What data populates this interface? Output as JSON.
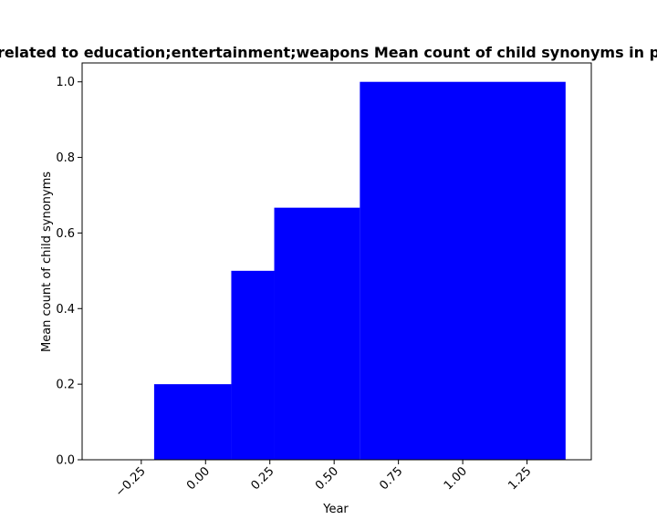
{
  "chart_data": {
    "type": "bar",
    "title": "related to education;entertainment;weapons Mean count of child synonyms in p",
    "xlabel": "Year",
    "ylabel": "Mean count of child synonyms",
    "xlim": [
      -0.48,
      1.5
    ],
    "ylim": [
      0,
      1.05
    ],
    "x_ticks": [
      -0.25,
      0.0,
      0.25,
      0.5,
      0.75,
      1.0,
      1.25
    ],
    "x_tick_labels": [
      "−0.25",
      "0.00",
      "0.25",
      "0.50",
      "0.75",
      "1.00",
      "1.25"
    ],
    "y_ticks": [
      0.0,
      0.2,
      0.4,
      0.6,
      0.8,
      1.0
    ],
    "y_tick_labels": [
      "0.0",
      "0.2",
      "0.4",
      "0.6",
      "0.8",
      "1.0"
    ],
    "bars": [
      {
        "x_start": -0.2,
        "x_end": 0.1,
        "value": 0.2
      },
      {
        "x_start": 0.1,
        "x_end": 0.267,
        "value": 0.5
      },
      {
        "x_start": 0.267,
        "x_end": 0.6,
        "value": 0.667
      },
      {
        "x_start": 0.6,
        "x_end": 1.4,
        "value": 1.0
      }
    ],
    "bar_color": "#0000ff",
    "grid": false,
    "legend": "none"
  }
}
